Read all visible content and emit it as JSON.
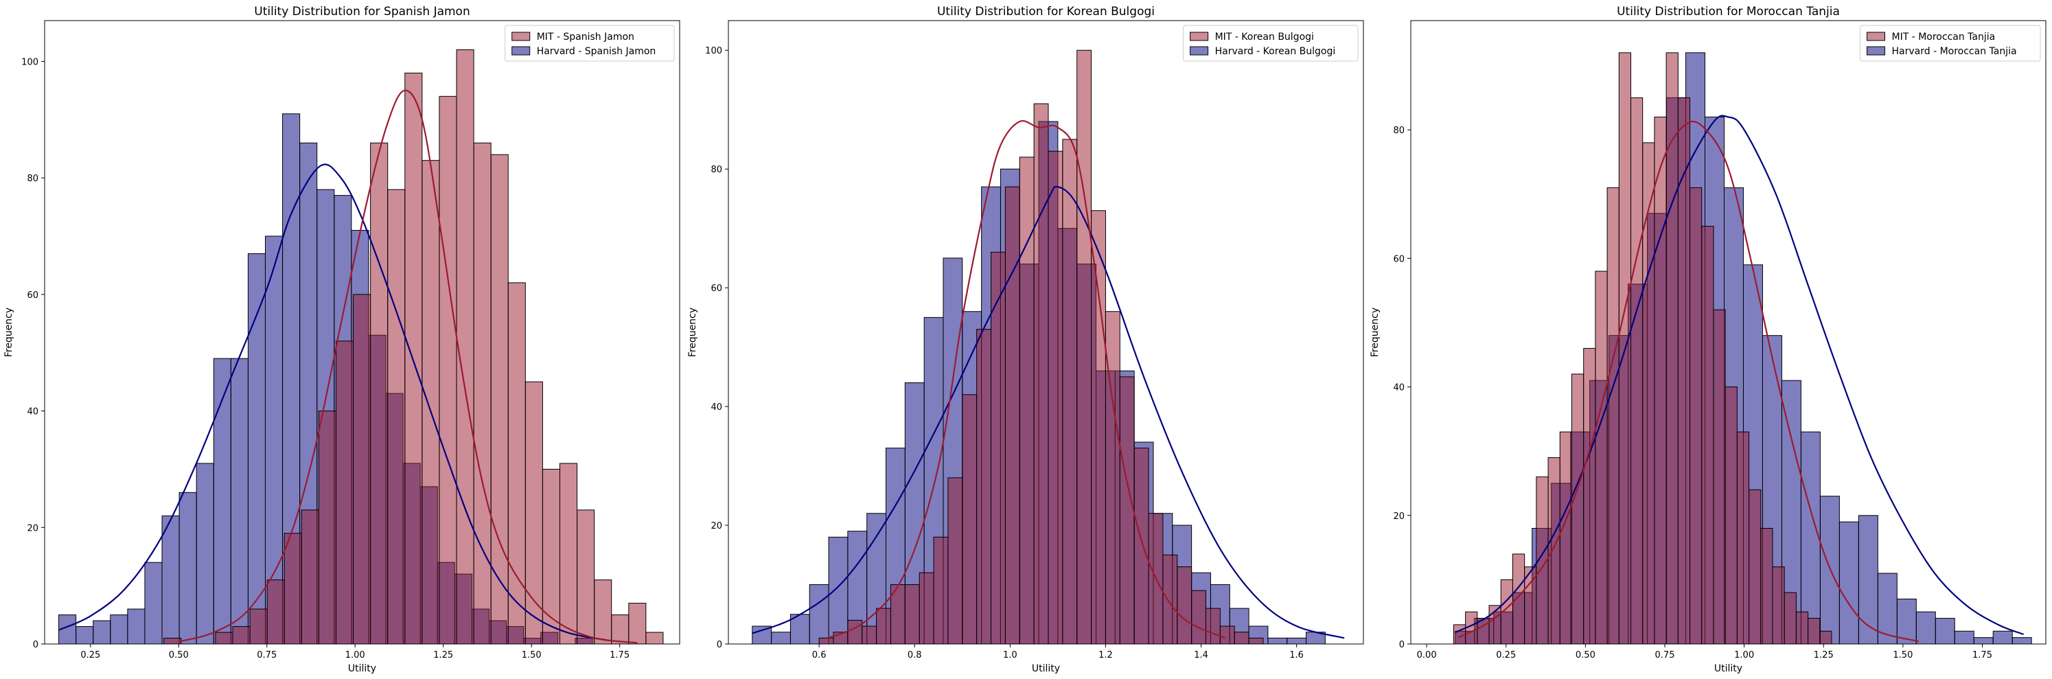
{
  "colors": {
    "mit": "#9b1b30",
    "harvard": "#000080",
    "mit_fill": "#9b1b30",
    "harvard_fill": "#000080"
  },
  "chart_data": [
    {
      "type": "histogram",
      "title": "Utility Distribution for Spanish Jamon",
      "xlabel": "Utility",
      "ylabel": "Frequency",
      "xlim": [
        0.12,
        1.92
      ],
      "ylim": [
        0,
        107
      ],
      "xticks": [
        0.25,
        0.5,
        0.75,
        1.0,
        1.25,
        1.5,
        1.75
      ],
      "xtick_labels": [
        "0.25",
        "0.50",
        "0.75",
        "1.00",
        "1.25",
        "1.50",
        "1.75"
      ],
      "yticks": [
        0,
        20,
        40,
        60,
        80,
        100
      ],
      "legend": "top-right",
      "kde": true,
      "series": [
        {
          "name": "Harvard - Spanish Jamon",
          "color": "harvard",
          "bin_start": 0.16,
          "bin_width": 0.0488,
          "counts": [
            5,
            3,
            4,
            5,
            6,
            14,
            22,
            26,
            31,
            49,
            49,
            67,
            70,
            91,
            86,
            78,
            77,
            71,
            53,
            43,
            31,
            27,
            14,
            12,
            6,
            4,
            3,
            1,
            2,
            0,
            1
          ],
          "kde": [
            [
              0.16,
              2.4
            ],
            [
              0.25,
              4.8
            ],
            [
              0.35,
              9.6
            ],
            [
              0.45,
              18.2
            ],
            [
              0.55,
              31.0
            ],
            [
              0.65,
              46.0
            ],
            [
              0.75,
              61.0
            ],
            [
              0.82,
              74.0
            ],
            [
              0.9,
              82.0
            ],
            [
              0.96,
              80.0
            ],
            [
              1.02,
              73.0
            ],
            [
              1.1,
              60.0
            ],
            [
              1.18,
              46.0
            ],
            [
              1.26,
              32.0
            ],
            [
              1.34,
              19.0
            ],
            [
              1.42,
              10.0
            ],
            [
              1.5,
              5.0
            ],
            [
              1.6,
              2.0
            ],
            [
              1.72,
              0.6
            ]
          ]
        },
        {
          "name": "MIT - Spanish Jamon",
          "color": "mit",
          "bin_start": 0.458,
          "bin_width": 0.0488,
          "counts": [
            1,
            0,
            0,
            2,
            3,
            6,
            11,
            19,
            23,
            40,
            52,
            60,
            86,
            78,
            98,
            83,
            94,
            102,
            86,
            84,
            62,
            45,
            30,
            31,
            23,
            11,
            5,
            7,
            2,
            0,
            0,
            0,
            1
          ],
          "kde": [
            [
              0.5,
              0.4
            ],
            [
              0.6,
              2.0
            ],
            [
              0.7,
              6.0
            ],
            [
              0.8,
              16.0
            ],
            [
              0.88,
              32.0
            ],
            [
              0.96,
              55.0
            ],
            [
              1.03,
              75.0
            ],
            [
              1.09,
              89.0
            ],
            [
              1.14,
              95.0
            ],
            [
              1.19,
              90.0
            ],
            [
              1.24,
              72.0
            ],
            [
              1.3,
              48.0
            ],
            [
              1.36,
              28.0
            ],
            [
              1.42,
              16.0
            ],
            [
              1.5,
              8.0
            ],
            [
              1.58,
              3.5
            ],
            [
              1.68,
              1.0
            ],
            [
              1.8,
              0.2
            ]
          ]
        }
      ]
    },
    {
      "type": "histogram",
      "title": "Utility Distribution for Korean Bulgogi",
      "xlabel": "Utility",
      "ylabel": "Frequency",
      "xlim": [
        0.41,
        1.74
      ],
      "ylim": [
        0,
        105
      ],
      "xticks": [
        0.6,
        0.8,
        1.0,
        1.2,
        1.4,
        1.6
      ],
      "xtick_labels": [
        "0.6",
        "0.8",
        "1.0",
        "1.2",
        "1.4",
        "1.6"
      ],
      "yticks": [
        0,
        20,
        40,
        60,
        80,
        100
      ],
      "legend": "top-right",
      "kde": true,
      "series": [
        {
          "name": "Harvard - Korean Bulgogi",
          "color": "harvard",
          "bin_start": 0.46,
          "bin_width": 0.04,
          "counts": [
            3,
            2,
            5,
            10,
            18,
            19,
            22,
            33,
            44,
            55,
            65,
            56,
            77,
            80,
            64,
            88,
            70,
            64,
            46,
            46,
            34,
            22,
            20,
            12,
            10,
            6,
            3,
            1,
            1,
            2
          ],
          "kde": [
            [
              0.46,
              1.8
            ],
            [
              0.55,
              4.5
            ],
            [
              0.65,
              10.5
            ],
            [
              0.75,
              22.0
            ],
            [
              0.85,
              37.0
            ],
            [
              0.95,
              54.0
            ],
            [
              1.02,
              65.0
            ],
            [
              1.08,
              75.0
            ],
            [
              1.1,
              77.0
            ],
            [
              1.14,
              74.0
            ],
            [
              1.2,
              63.0
            ],
            [
              1.28,
              45.0
            ],
            [
              1.36,
              29.0
            ],
            [
              1.44,
              16.0
            ],
            [
              1.52,
              7.5
            ],
            [
              1.6,
              3.0
            ],
            [
              1.7,
              1.0
            ]
          ]
        },
        {
          "name": "MIT - Korean Bulgogi",
          "color": "mit",
          "bin_start": 0.6,
          "bin_width": 0.03,
          "counts": [
            1,
            2,
            4,
            3,
            6,
            10,
            10,
            12,
            18,
            28,
            42,
            53,
            66,
            77,
            82,
            91,
            83,
            85,
            100,
            73,
            56,
            45,
            33,
            22,
            15,
            13,
            9,
            6,
            3,
            2,
            1
          ],
          "kde": [
            [
              0.62,
              1.0
            ],
            [
              0.7,
              4.0
            ],
            [
              0.78,
              12.0
            ],
            [
              0.85,
              30.0
            ],
            [
              0.9,
              55.0
            ],
            [
              0.95,
              75.0
            ],
            [
              0.98,
              84.0
            ],
            [
              1.02,
              88.0
            ],
            [
              1.06,
              87.0
            ],
            [
              1.1,
              87.0
            ],
            [
              1.14,
              82.0
            ],
            [
              1.18,
              62.0
            ],
            [
              1.22,
              38.0
            ],
            [
              1.26,
              22.0
            ],
            [
              1.3,
              12.0
            ],
            [
              1.36,
              4.5
            ],
            [
              1.45,
              1.0
            ]
          ]
        }
      ]
    },
    {
      "type": "histogram",
      "title": "Utility Distribution for Moroccan Tanjia",
      "xlabel": "Utility",
      "ylabel": "Frequency",
      "xlim": [
        -0.05,
        1.95
      ],
      "ylim": [
        0,
        97
      ],
      "xticks": [
        0.0,
        0.25,
        0.5,
        0.75,
        1.0,
        1.25,
        1.5,
        1.75
      ],
      "xtick_labels": [
        "0.00",
        "0.25",
        "0.50",
        "0.75",
        "1.00",
        "1.25",
        "1.50",
        "1.75"
      ],
      "yticks": [
        0,
        20,
        40,
        60,
        80
      ],
      "legend": "top-right",
      "kde": true,
      "series": [
        {
          "name": "Harvard - Moroccan Tanjia",
          "color": "harvard",
          "bin_start": 0.09,
          "bin_width": 0.0605,
          "counts": [
            2,
            4,
            5,
            8,
            18,
            25,
            33,
            41,
            48,
            56,
            67,
            85,
            92,
            82,
            71,
            59,
            48,
            41,
            33,
            23,
            19,
            20,
            11,
            7,
            5,
            4,
            2,
            1,
            2,
            1
          ],
          "kde": [
            [
              0.09,
              1.8
            ],
            [
              0.2,
              4.5
            ],
            [
              0.3,
              9.5
            ],
            [
              0.4,
              17.0
            ],
            [
              0.5,
              28.0
            ],
            [
              0.6,
              42.0
            ],
            [
              0.7,
              58.0
            ],
            [
              0.8,
              72.0
            ],
            [
              0.9,
              81.0
            ],
            [
              0.95,
              82.0
            ],
            [
              1.0,
              80.0
            ],
            [
              1.1,
              70.0
            ],
            [
              1.2,
              56.0
            ],
            [
              1.3,
              42.0
            ],
            [
              1.4,
              29.0
            ],
            [
              1.5,
              19.0
            ],
            [
              1.6,
              11.0
            ],
            [
              1.7,
              6.0
            ],
            [
              1.8,
              3.0
            ],
            [
              1.88,
              1.5
            ]
          ]
        },
        {
          "name": "MIT - Moroccan Tanjia",
          "color": "mit",
          "bin_start": 0.085,
          "bin_width": 0.0372,
          "counts": [
            3,
            5,
            4,
            6,
            10,
            14,
            12,
            26,
            29,
            33,
            42,
            46,
            58,
            71,
            92,
            85,
            78,
            82,
            92,
            85,
            71,
            65,
            52,
            40,
            33,
            24,
            18,
            12,
            8,
            5,
            4,
            2
          ],
          "kde": [
            [
              0.1,
              1.0
            ],
            [
              0.2,
              3.5
            ],
            [
              0.3,
              8.0
            ],
            [
              0.4,
              15.0
            ],
            [
              0.5,
              28.0
            ],
            [
              0.6,
              47.0
            ],
            [
              0.68,
              64.0
            ],
            [
              0.75,
              76.0
            ],
            [
              0.82,
              81.0
            ],
            [
              0.88,
              80.0
            ],
            [
              0.95,
              74.0
            ],
            [
              1.02,
              60.0
            ],
            [
              1.1,
              42.0
            ],
            [
              1.18,
              26.0
            ],
            [
              1.26,
              13.0
            ],
            [
              1.34,
              5.5
            ],
            [
              1.42,
              2.0
            ],
            [
              1.55,
              0.4
            ]
          ]
        }
      ]
    }
  ]
}
